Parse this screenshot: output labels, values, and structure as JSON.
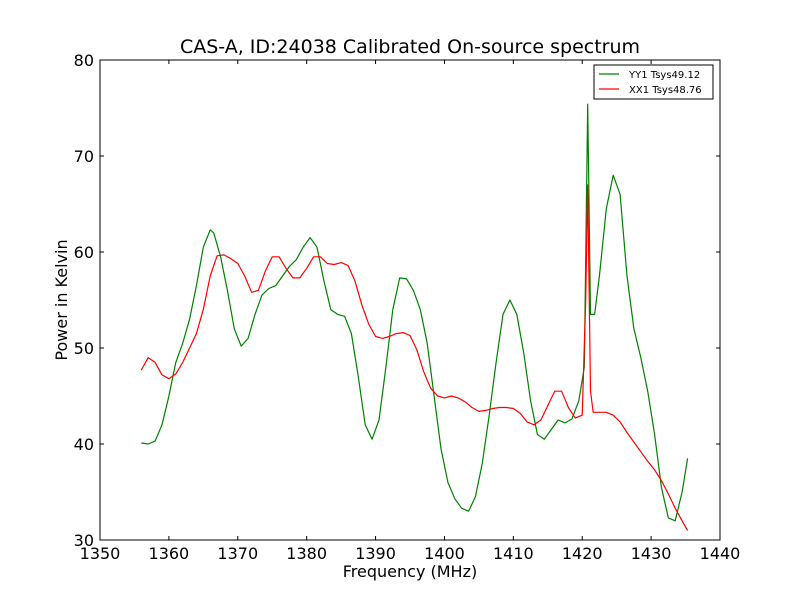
{
  "chart_data": {
    "type": "line",
    "title": "CAS-A, ID:24038 Calibrated On-source spectrum",
    "xlabel": "Frequency (MHz)",
    "ylabel": "Power in Kelvin",
    "xlim": [
      1350,
      1440
    ],
    "ylim": [
      30,
      80
    ],
    "xticks": [
      1350,
      1360,
      1370,
      1380,
      1390,
      1400,
      1410,
      1420,
      1430,
      1440
    ],
    "yticks": [
      30,
      40,
      50,
      60,
      70,
      80
    ],
    "grid": false,
    "legend_position": "top-right",
    "series": [
      {
        "name": "YY1 Tsys49.12",
        "color": "#008000",
        "points": [
          [
            1356.0,
            40.1
          ],
          [
            1357.0,
            40.0
          ],
          [
            1358.0,
            40.3
          ],
          [
            1359.0,
            42.0
          ],
          [
            1360.0,
            45.0
          ],
          [
            1361.0,
            48.5
          ],
          [
            1362.0,
            50.5
          ],
          [
            1363.0,
            53.0
          ],
          [
            1364.0,
            56.5
          ],
          [
            1365.0,
            60.5
          ],
          [
            1366.0,
            62.3
          ],
          [
            1366.5,
            62.0
          ],
          [
            1367.5,
            59.5
          ],
          [
            1368.5,
            56.0
          ],
          [
            1369.5,
            52.0
          ],
          [
            1370.5,
            50.2
          ],
          [
            1371.5,
            51.0
          ],
          [
            1372.5,
            53.5
          ],
          [
            1373.5,
            55.5
          ],
          [
            1374.5,
            56.2
          ],
          [
            1375.5,
            56.5
          ],
          [
            1376.5,
            57.5
          ],
          [
            1377.5,
            58.5
          ],
          [
            1378.5,
            59.2
          ],
          [
            1379.5,
            60.5
          ],
          [
            1380.5,
            61.5
          ],
          [
            1381.5,
            60.5
          ],
          [
            1382.5,
            57.0
          ],
          [
            1383.5,
            54.0
          ],
          [
            1384.5,
            53.5
          ],
          [
            1385.5,
            53.3
          ],
          [
            1386.5,
            51.5
          ],
          [
            1387.5,
            47.0
          ],
          [
            1388.5,
            42.0
          ],
          [
            1389.5,
            40.5
          ],
          [
            1390.5,
            42.5
          ],
          [
            1391.5,
            48.0
          ],
          [
            1392.5,
            54.0
          ],
          [
            1393.5,
            57.3
          ],
          [
            1394.5,
            57.2
          ],
          [
            1395.5,
            56.0
          ],
          [
            1396.5,
            54.0
          ],
          [
            1397.5,
            50.5
          ],
          [
            1398.5,
            45.0
          ],
          [
            1399.5,
            39.5
          ],
          [
            1400.5,
            36.0
          ],
          [
            1401.5,
            34.3
          ],
          [
            1402.5,
            33.3
          ],
          [
            1403.5,
            33.0
          ],
          [
            1404.5,
            34.5
          ],
          [
            1405.5,
            38.0
          ],
          [
            1406.5,
            43.0
          ],
          [
            1407.5,
            48.5
          ],
          [
            1408.5,
            53.5
          ],
          [
            1409.5,
            55.0
          ],
          [
            1410.5,
            53.5
          ],
          [
            1411.5,
            49.5
          ],
          [
            1412.5,
            44.5
          ],
          [
            1413.5,
            41.0
          ],
          [
            1414.5,
            40.5
          ],
          [
            1415.5,
            41.5
          ],
          [
            1416.5,
            42.5
          ],
          [
            1417.5,
            42.2
          ],
          [
            1418.5,
            42.6
          ],
          [
            1419.5,
            44.5
          ],
          [
            1420.3,
            48.0
          ],
          [
            1420.8,
            75.4
          ],
          [
            1421.2,
            53.5
          ],
          [
            1421.8,
            53.5
          ],
          [
            1422.5,
            57.5
          ],
          [
            1423.5,
            64.5
          ],
          [
            1424.5,
            68.0
          ],
          [
            1425.5,
            66.0
          ],
          [
            1426.5,
            57.5
          ],
          [
            1427.5,
            52.0
          ],
          [
            1428.5,
            49.0
          ],
          [
            1429.5,
            45.5
          ],
          [
            1430.5,
            41.0
          ],
          [
            1431.5,
            35.5
          ],
          [
            1432.5,
            32.3
          ],
          [
            1433.5,
            32.0
          ],
          [
            1434.5,
            35.0
          ],
          [
            1435.3,
            38.5
          ]
        ]
      },
      {
        "name": "XX1 Tsys48.76",
        "color": "#ff0000",
        "points": [
          [
            1356.0,
            47.7
          ],
          [
            1357.0,
            49.0
          ],
          [
            1358.0,
            48.5
          ],
          [
            1359.0,
            47.2
          ],
          [
            1360.0,
            46.8
          ],
          [
            1361.0,
            47.3
          ],
          [
            1362.0,
            48.5
          ],
          [
            1363.0,
            50.0
          ],
          [
            1364.0,
            51.5
          ],
          [
            1365.0,
            54.0
          ],
          [
            1366.0,
            57.5
          ],
          [
            1367.0,
            59.6
          ],
          [
            1368.0,
            59.7
          ],
          [
            1369.0,
            59.3
          ],
          [
            1370.0,
            58.8
          ],
          [
            1371.0,
            57.5
          ],
          [
            1372.0,
            55.8
          ],
          [
            1373.0,
            56.0
          ],
          [
            1374.0,
            58.0
          ],
          [
            1375.0,
            59.5
          ],
          [
            1376.0,
            59.5
          ],
          [
            1377.0,
            58.3
          ],
          [
            1378.0,
            57.3
          ],
          [
            1379.0,
            57.3
          ],
          [
            1380.0,
            58.3
          ],
          [
            1381.0,
            59.5
          ],
          [
            1382.0,
            59.5
          ],
          [
            1383.0,
            58.8
          ],
          [
            1384.0,
            58.7
          ],
          [
            1385.0,
            58.9
          ],
          [
            1386.0,
            58.6
          ],
          [
            1387.0,
            57.0
          ],
          [
            1388.0,
            54.5
          ],
          [
            1389.0,
            52.5
          ],
          [
            1390.0,
            51.2
          ],
          [
            1391.0,
            51.0
          ],
          [
            1392.0,
            51.2
          ],
          [
            1393.0,
            51.5
          ],
          [
            1394.0,
            51.6
          ],
          [
            1395.0,
            51.3
          ],
          [
            1396.0,
            49.8
          ],
          [
            1397.0,
            47.5
          ],
          [
            1398.0,
            45.8
          ],
          [
            1399.0,
            45.0
          ],
          [
            1400.0,
            44.8
          ],
          [
            1401.0,
            45.0
          ],
          [
            1402.0,
            44.8
          ],
          [
            1403.0,
            44.4
          ],
          [
            1404.0,
            43.8
          ],
          [
            1405.0,
            43.4
          ],
          [
            1406.0,
            43.5
          ],
          [
            1407.0,
            43.7
          ],
          [
            1408.0,
            43.8
          ],
          [
            1409.0,
            43.8
          ],
          [
            1410.0,
            43.7
          ],
          [
            1411.0,
            43.2
          ],
          [
            1412.0,
            42.3
          ],
          [
            1413.0,
            42.0
          ],
          [
            1414.0,
            42.5
          ],
          [
            1415.0,
            44.0
          ],
          [
            1416.0,
            45.5
          ],
          [
            1417.0,
            45.5
          ],
          [
            1418.0,
            43.8
          ],
          [
            1419.0,
            42.7
          ],
          [
            1420.0,
            43.0
          ],
          [
            1420.5,
            55.0
          ],
          [
            1420.8,
            67.0
          ],
          [
            1421.2,
            45.5
          ],
          [
            1421.6,
            43.3
          ],
          [
            1422.5,
            43.3
          ],
          [
            1423.5,
            43.3
          ],
          [
            1424.5,
            43.0
          ],
          [
            1425.5,
            42.3
          ],
          [
            1426.5,
            41.2
          ],
          [
            1427.5,
            40.2
          ],
          [
            1428.5,
            39.2
          ],
          [
            1429.5,
            38.2
          ],
          [
            1430.5,
            37.3
          ],
          [
            1431.5,
            36.2
          ],
          [
            1432.5,
            34.8
          ],
          [
            1433.5,
            33.3
          ],
          [
            1434.5,
            32.0
          ],
          [
            1435.3,
            31.0
          ]
        ]
      }
    ]
  }
}
